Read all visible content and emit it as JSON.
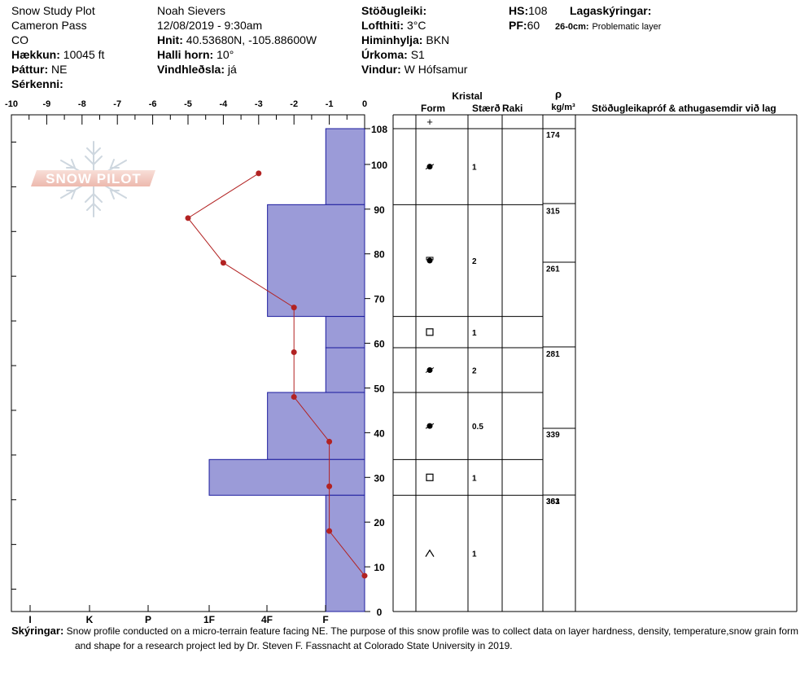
{
  "header": {
    "col1": [
      {
        "label": "",
        "value": "Snow Study Plot"
      },
      {
        "label": "",
        "value": "Cameron Pass"
      },
      {
        "label": "",
        "value": "CO"
      },
      {
        "label": "Hækkun:",
        "value": "10045 ft"
      },
      {
        "label": "Þáttur:",
        "value": "NE"
      },
      {
        "label": "Sérkenni:",
        "value": ""
      }
    ],
    "col2": [
      {
        "label": "",
        "value": "Noah Sievers"
      },
      {
        "label": "",
        "value": "12/08/2019 - 9:30am"
      },
      {
        "label": "Hnit:",
        "value": "40.53680N, -105.88600W"
      },
      {
        "label": "Halli horn:",
        "value": "10°"
      },
      {
        "label": "Vindhleðsla:",
        "value": "já"
      }
    ],
    "col3": [
      {
        "label": "Stöðugleiki:",
        "value": ""
      },
      {
        "label": "Lofthiti:",
        "value": "3°C"
      },
      {
        "label": "Himinhylja:",
        "value": "BKN"
      },
      {
        "label": "Úrkoma:",
        "value": "S1"
      },
      {
        "label": "Vindur:",
        "value": "W Hófsamur"
      }
    ],
    "hs_label": "HS:",
    "hs_value": "108",
    "pf_label": "PF:",
    "pf_value": "60",
    "legend_title": "Lagaskýringar:",
    "legend_range": "26-0cm:",
    "legend_text": "Problematic layer"
  },
  "logo_text": "SNOW PILOT",
  "table_headers": {
    "kristal": "Kristal",
    "form": "Form",
    "size": "Stærð",
    "moisture": "Raki",
    "rho": "ρ",
    "density_unit": "kg/m³",
    "comments": "Stöðugleikapróf & athugasemdir við lag"
  },
  "top_symbol": "+",
  "chart_data": {
    "type": "snow_profile",
    "temperature_axis": {
      "ticks": [
        "-10",
        "-9",
        "-8",
        "-7",
        "-6",
        "-5",
        "-4",
        "-3",
        "-2",
        "-1",
        "0"
      ],
      "range": [
        -10,
        0
      ]
    },
    "height_axis": {
      "ticks": [
        "108",
        "100",
        "90",
        "80",
        "70",
        "60",
        "50",
        "40",
        "30",
        "20",
        "10",
        "0"
      ],
      "range": [
        0,
        108
      ]
    },
    "hardness_axis": {
      "ticks": [
        "I",
        "K",
        "P",
        "1F",
        "4F",
        "F"
      ]
    },
    "hardness_layers": [
      {
        "top": 108,
        "bottom": 91,
        "hardness": "F",
        "hardness_value": 1.1
      },
      {
        "top": 91,
        "bottom": 66,
        "hardness": "4F",
        "hardness_value": 2.75
      },
      {
        "top": 66,
        "bottom": 59,
        "hardness": "F",
        "hardness_value": 1.1
      },
      {
        "top": 59,
        "bottom": 49,
        "hardness": "F",
        "hardness_value": 1.1
      },
      {
        "top": 49,
        "bottom": 34,
        "hardness": "4F",
        "hardness_value": 2.75
      },
      {
        "top": 34,
        "bottom": 26,
        "hardness": "1F",
        "hardness_value": 4.4
      },
      {
        "top": 26,
        "bottom": 0,
        "hardness": "F",
        "hardness_value": 1.1
      }
    ],
    "temperature_profile": [
      {
        "height": 98,
        "temp": -3.0
      },
      {
        "height": 88,
        "temp": -5.0
      },
      {
        "height": 78,
        "temp": -4.0
      },
      {
        "height": 68,
        "temp": -2.0
      },
      {
        "height": 58,
        "temp": -2.0
      },
      {
        "height": 48,
        "temp": -2.0
      },
      {
        "height": 38,
        "temp": -1.0
      },
      {
        "height": 28,
        "temp": -1.0
      },
      {
        "height": 18,
        "temp": -1.0
      },
      {
        "height": 8,
        "temp": 0.0
      }
    ],
    "layers": [
      {
        "top": 108,
        "bottom": 91,
        "form": "faceted-rounded",
        "size": "1"
      },
      {
        "top": 91,
        "bottom": 66,
        "form": "rounded-faceted",
        "size": "2"
      },
      {
        "top": 66,
        "bottom": 59,
        "form": "faceted",
        "size": "1"
      },
      {
        "top": 59,
        "bottom": 49,
        "form": "faceted-rounded",
        "size": "2"
      },
      {
        "top": 49,
        "bottom": 34,
        "form": "faceted-rounded",
        "size": "0.5"
      },
      {
        "top": 34,
        "bottom": 26,
        "form": "faceted",
        "size": "1"
      },
      {
        "top": 26,
        "bottom": 0,
        "form": "depth-hoar",
        "size": "1"
      }
    ],
    "density": [
      {
        "top": 108,
        "value": "174"
      },
      {
        "top": 91,
        "value": "315"
      },
      {
        "top": 78,
        "value": "261"
      },
      {
        "top": 59,
        "value": "281"
      },
      {
        "top": 41,
        "value": "339"
      },
      {
        "top": 26,
        "value": "363"
      },
      {
        "top": 26,
        "value": "381"
      }
    ]
  },
  "notes": {
    "label": "Skýringar:",
    "line1": "Snow profile conducted on a micro-terrain feature facing NE. The purpose of this snow profile was to collect data on layer hardness, density, temperature,snow grain form",
    "line2": "and shape for a research project led by Dr. Steven F. Fassnacht at Colorado State University in 2019."
  }
}
